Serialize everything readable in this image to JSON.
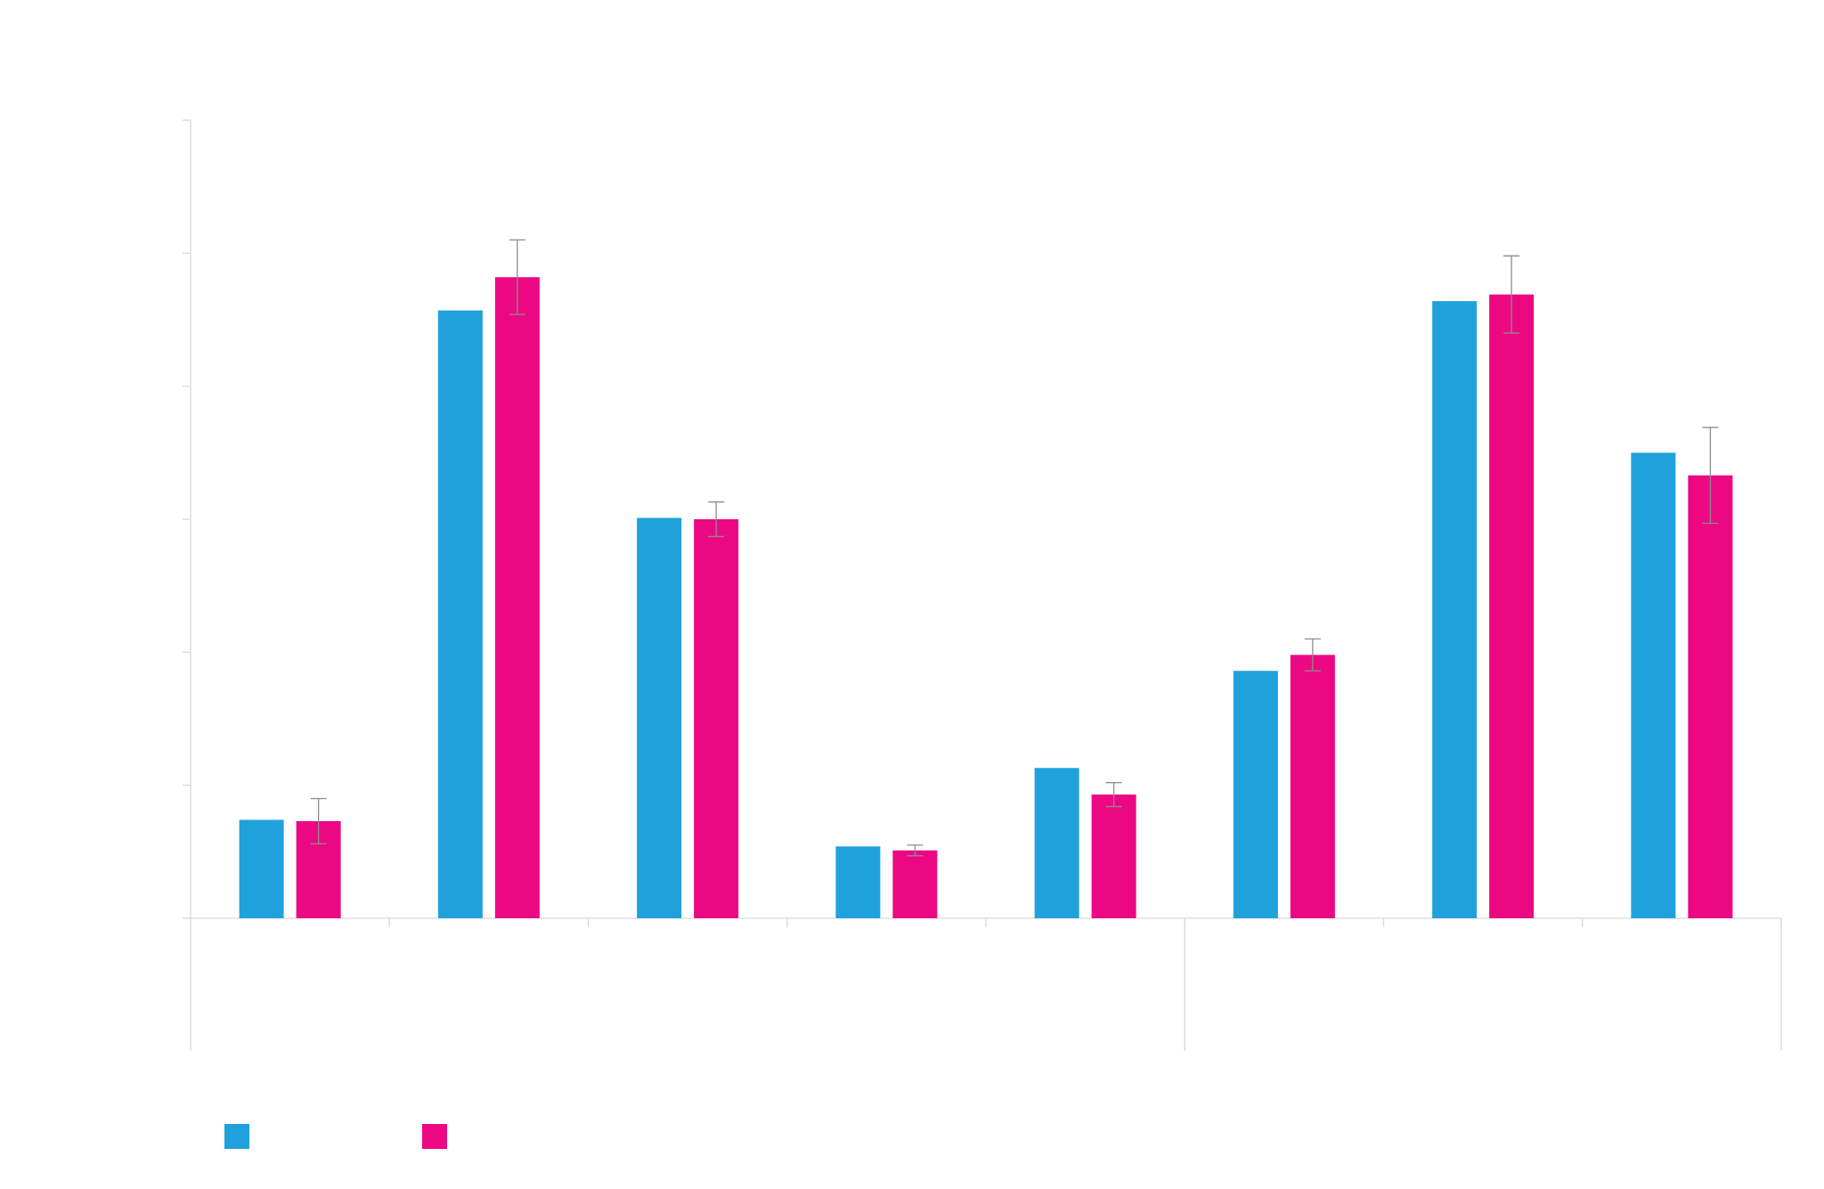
{
  "chart_data": {
    "type": "bar",
    "title": "",
    "xlabel": "",
    "ylabel": "",
    "ylim": [
      0,
      6
    ],
    "yticks": [
      0,
      1,
      2,
      3,
      4,
      5,
      6
    ],
    "tick_labels_visible": false,
    "grid": false,
    "legend_position": "bottom-left",
    "categories": [
      "",
      "",
      "",
      "",
      "",
      "",
      "",
      ""
    ],
    "groups": [
      {
        "label": "",
        "categories": 5
      },
      {
        "label": "",
        "categories": 3
      }
    ],
    "series": [
      {
        "color": "#1fa2dc",
        "values": [
          0.74,
          4.57,
          3.01,
          0.54,
          1.13,
          1.86,
          4.64,
          3.5
        ]
      },
      {
        "color": "#ec0883",
        "values": [
          0.73,
          4.82,
          3.0,
          0.51,
          0.93,
          1.98,
          4.69,
          3.33
        ],
        "error": [
          0.17,
          0.28,
          0.13,
          0.04,
          0.09,
          0.12,
          0.29,
          0.36
        ]
      }
    ]
  }
}
